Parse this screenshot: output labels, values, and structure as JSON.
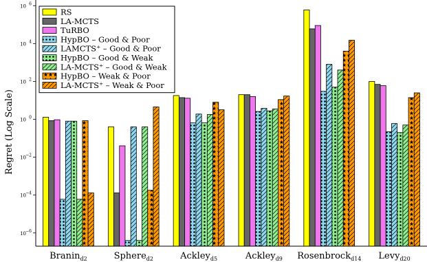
{
  "chart_data": {
    "type": "bar",
    "title": "",
    "xlabel": "",
    "ylabel": "Regret (Log Scale)",
    "yscale": "log",
    "ylim": [
      2e-07,
      2000000.0
    ],
    "yticks": [
      {
        "value": 1e-06,
        "base": "10",
        "exp": "−6"
      },
      {
        "value": 0.0001,
        "base": "10",
        "exp": "−4"
      },
      {
        "value": 0.01,
        "base": "10",
        "exp": "−2"
      },
      {
        "value": 1,
        "base": "10",
        "exp": "0"
      },
      {
        "value": 100,
        "base": "10",
        "exp": "2"
      },
      {
        "value": 10000,
        "base": "10",
        "exp": "4"
      },
      {
        "value": 1000000,
        "base": "10",
        "exp": "6"
      }
    ],
    "categories": [
      {
        "name": "Branin",
        "sub": "d2"
      },
      {
        "name": "Sphere",
        "sub": "d2"
      },
      {
        "name": "Ackley",
        "sub": "d5"
      },
      {
        "name": "Ackley",
        "sub": "d9"
      },
      {
        "name": "Rosenbrock",
        "sub": "d14"
      },
      {
        "name": "Levy",
        "sub": "d20"
      }
    ],
    "legend_position": "top-left",
    "grid": false,
    "series": [
      {
        "name": "RS",
        "color": "#ffff00",
        "pattern": "none",
        "values": [
          1.3,
          0.4,
          18,
          20,
          600000,
          100
        ]
      },
      {
        "name": "LA-MCTS",
        "color": "#666666",
        "pattern": "none",
        "values": [
          0.85,
          0.00013,
          14,
          20,
          60000,
          70
        ]
      },
      {
        "name": "TuRBO",
        "color": "#ee77ee",
        "pattern": "none",
        "values": [
          0.95,
          0.04,
          13,
          16,
          90000,
          60
        ]
      },
      {
        "name": "HypBO – Good & Poor",
        "color": "#8fd8f0",
        "pattern": "dots",
        "values": [
          6e-05,
          4e-07,
          0.65,
          2.6,
          30,
          0.22
        ]
      },
      {
        "name": "LAMCTS⁺ – Good & Poor",
        "color": "#8fd8f0",
        "pattern": "hatch",
        "values": [
          0.8,
          0.4,
          1.9,
          3.8,
          800,
          0.6
        ]
      },
      {
        "name": "HypBO – Good & Weak",
        "color": "#90ee90",
        "pattern": "dots",
        "values": [
          0.8,
          4e-07,
          0.65,
          2.8,
          50,
          0.2
        ]
      },
      {
        "name": "LA-MCTS⁺ – Good & Weak",
        "color": "#90ee90",
        "pattern": "hatch",
        "values": [
          6e-05,
          0.4,
          1.8,
          3.5,
          400,
          0.5
        ]
      },
      {
        "name": "HypBO – Weak & Poor",
        "color": "#ff9900",
        "pattern": "stars",
        "values": [
          0.85,
          0.00018,
          8,
          11,
          4000,
          14
        ]
      },
      {
        "name": "LA-MCTS⁺ – Weak & Poor",
        "color": "#ff9900",
        "pattern": "hatch",
        "values": [
          0.00013,
          4.5,
          3.2,
          17,
          15000,
          25
        ]
      }
    ]
  }
}
